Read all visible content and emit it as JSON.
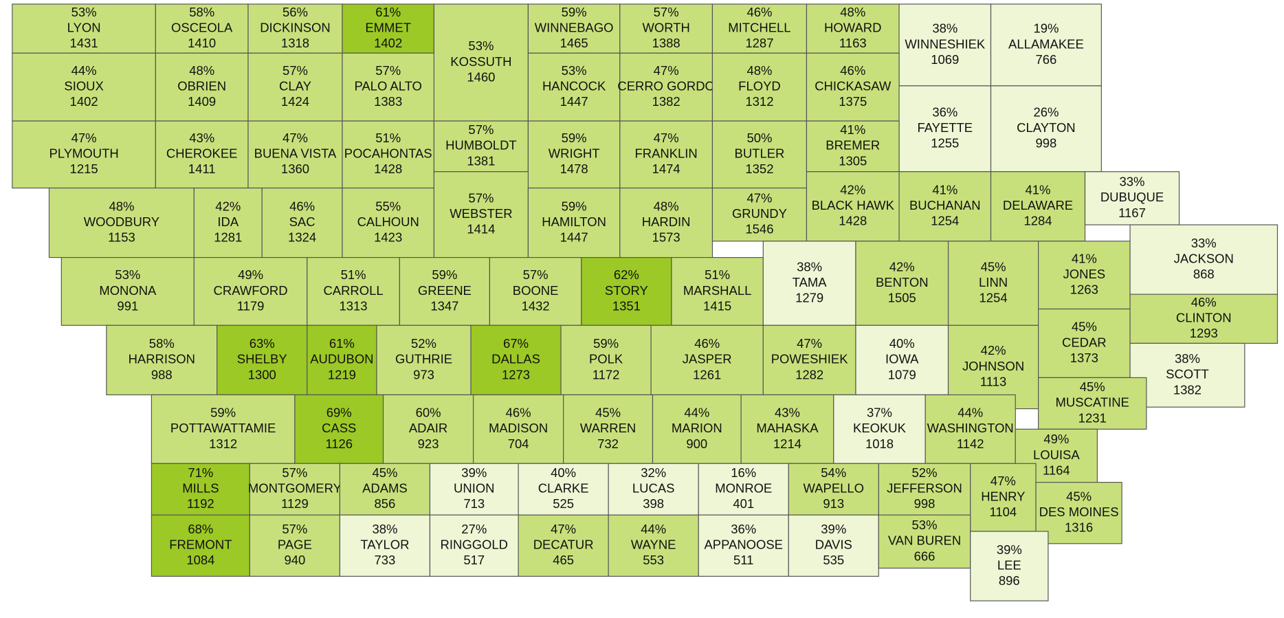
{
  "counties": [
    {
      "name": "LYON",
      "count": 1431,
      "pct": "53%",
      "color": "#c8e07c"
    },
    {
      "name": "OSCEOLA",
      "count": 1410,
      "pct": "58%",
      "color": "#c8e07c"
    },
    {
      "name": "DICKINSON",
      "count": 1318,
      "pct": "56%",
      "color": "#c8e07c"
    },
    {
      "name": "EMMET",
      "count": 1402,
      "pct": "61%",
      "color": "#9cc925"
    },
    {
      "name": "KOSSUTH",
      "count": 1460,
      "pct": "53%",
      "color": "#c8e07c"
    },
    {
      "name": "WINNEBAGO",
      "count": 1465,
      "pct": "59%",
      "color": "#c8e07c"
    },
    {
      "name": "WORTH",
      "count": 1388,
      "pct": "57%",
      "color": "#c8e07c"
    },
    {
      "name": "MITCHELL",
      "count": 1287,
      "pct": "46%",
      "color": "#c8e07c"
    },
    {
      "name": "HOWARD",
      "count": 1163,
      "pct": "48%",
      "color": "#c8e07c"
    },
    {
      "name": "WINNESHIEK",
      "count": 1069,
      "pct": "38%",
      "color": "#eef6d5"
    },
    {
      "name": "ALLAMAKEE",
      "count": 766,
      "pct": "19%",
      "color": "#eef6d5"
    },
    {
      "name": "SIOUX",
      "count": 1402,
      "pct": "44%",
      "color": "#c8e07c"
    },
    {
      "name": "OBRIEN",
      "count": 1409,
      "pct": "48%",
      "color": "#c8e07c"
    },
    {
      "name": "CLAY",
      "count": 1424,
      "pct": "57%",
      "color": "#c8e07c"
    },
    {
      "name": "PALO ALTO",
      "count": 1383,
      "pct": "57%",
      "color": "#c8e07c"
    },
    {
      "name": "HANCOCK",
      "count": 1447,
      "pct": "53%",
      "color": "#c8e07c"
    },
    {
      "name": "CERRO GORDO",
      "count": 1382,
      "pct": "47%",
      "color": "#c8e07c"
    },
    {
      "name": "FLOYD",
      "count": 1312,
      "pct": "48%",
      "color": "#c8e07c"
    },
    {
      "name": "CHICKASAW",
      "count": 1375,
      "pct": "46%",
      "color": "#c8e07c"
    },
    {
      "name": "FAYETTE",
      "count": 1255,
      "pct": "36%",
      "color": "#eef6d5"
    },
    {
      "name": "CLAYTON",
      "count": 998,
      "pct": "26%",
      "color": "#eef6d5"
    },
    {
      "name": "PLYMOUTH",
      "count": 1215,
      "pct": "47%",
      "color": "#c8e07c"
    },
    {
      "name": "CHEROKEE",
      "count": 1411,
      "pct": "43%",
      "color": "#c8e07c"
    },
    {
      "name": "BUENA VISTA",
      "count": 1360,
      "pct": "47%",
      "color": "#c8e07c"
    },
    {
      "name": "POCAHONTAS",
      "count": 1428,
      "pct": "51%",
      "color": "#c8e07c"
    },
    {
      "name": "HUMBOLDT",
      "count": 1381,
      "pct": "57%",
      "color": "#c8e07c"
    },
    {
      "name": "WRIGHT",
      "count": 1478,
      "pct": "59%",
      "color": "#c8e07c"
    },
    {
      "name": "FRANKLIN",
      "count": 1474,
      "pct": "47%",
      "color": "#c8e07c"
    },
    {
      "name": "BUTLER",
      "count": 1352,
      "pct": "50%",
      "color": "#c8e07c"
    },
    {
      "name": "BREMER",
      "count": 1305,
      "pct": "41%",
      "color": "#c8e07c"
    },
    {
      "name": "WOODBURY",
      "count": 1153,
      "pct": "48%",
      "color": "#c8e07c"
    },
    {
      "name": "IDA",
      "count": 1281,
      "pct": "42%",
      "color": "#c8e07c"
    },
    {
      "name": "SAC",
      "count": 1324,
      "pct": "46%",
      "color": "#c8e07c"
    },
    {
      "name": "CALHOUN",
      "count": 1423,
      "pct": "55%",
      "color": "#c8e07c"
    },
    {
      "name": "WEBSTER",
      "count": 1414,
      "pct": "57%",
      "color": "#c8e07c"
    },
    {
      "name": "HAMILTON",
      "count": 1447,
      "pct": "59%",
      "color": "#c8e07c"
    },
    {
      "name": "HARDIN",
      "count": 1573,
      "pct": "48%",
      "color": "#c8e07c"
    },
    {
      "name": "GRUNDY",
      "count": 1546,
      "pct": "47%",
      "color": "#c8e07c"
    },
    {
      "name": "BLACK HAWK",
      "count": 1428,
      "pct": "42%",
      "color": "#c8e07c"
    },
    {
      "name": "BUCHANAN",
      "count": 1254,
      "pct": "41%",
      "color": "#c8e07c"
    },
    {
      "name": "DELAWARE",
      "count": 1284,
      "pct": "41%",
      "color": "#c8e07c"
    },
    {
      "name": "DUBUQUE",
      "count": 1167,
      "pct": "33%",
      "color": "#eef6d5"
    },
    {
      "name": "MONONA",
      "count": 991,
      "pct": "53%",
      "color": "#c8e07c"
    },
    {
      "name": "CRAWFORD",
      "count": 1179,
      "pct": "49%",
      "color": "#c8e07c"
    },
    {
      "name": "CARROLL",
      "count": 1313,
      "pct": "51%",
      "color": "#c8e07c"
    },
    {
      "name": "GREENE",
      "count": 1347,
      "pct": "59%",
      "color": "#c8e07c"
    },
    {
      "name": "BOONE",
      "count": 1432,
      "pct": "57%",
      "color": "#c8e07c"
    },
    {
      "name": "STORY",
      "count": 1351,
      "pct": "62%",
      "color": "#9cc925"
    },
    {
      "name": "MARSHALL",
      "count": 1415,
      "pct": "51%",
      "color": "#c8e07c"
    },
    {
      "name": "TAMA",
      "count": 1279,
      "pct": "38%",
      "color": "#eef6d5"
    },
    {
      "name": "BENTON",
      "count": 1505,
      "pct": "42%",
      "color": "#c8e07c"
    },
    {
      "name": "LINN",
      "count": 1254,
      "pct": "45%",
      "color": "#c8e07c"
    },
    {
      "name": "JONES",
      "count": 1263,
      "pct": "41%",
      "color": "#c8e07c"
    },
    {
      "name": "JACKSON",
      "count": 868,
      "pct": "33%",
      "color": "#eef6d5"
    },
    {
      "name": "HARRISON",
      "count": 988,
      "pct": "58%",
      "color": "#c8e07c"
    },
    {
      "name": "SHELBY",
      "count": 1300,
      "pct": "63%",
      "color": "#9cc925"
    },
    {
      "name": "AUDUBON",
      "count": 1219,
      "pct": "61%",
      "color": "#9cc925"
    },
    {
      "name": "GUTHRIE",
      "count": 973,
      "pct": "52%",
      "color": "#c8e07c"
    },
    {
      "name": "DALLAS",
      "count": 1273,
      "pct": "67%",
      "color": "#9cc925"
    },
    {
      "name": "POLK",
      "count": 1172,
      "pct": "59%",
      "color": "#c8e07c"
    },
    {
      "name": "JASPER",
      "count": 1261,
      "pct": "46%",
      "color": "#c8e07c"
    },
    {
      "name": "POWESHIEK",
      "count": 1282,
      "pct": "47%",
      "color": "#c8e07c"
    },
    {
      "name": "IOWA",
      "count": 1079,
      "pct": "40%",
      "color": "#eef6d5"
    },
    {
      "name": "JOHNSON",
      "count": 1113,
      "pct": "42%",
      "color": "#c8e07c"
    },
    {
      "name": "CEDAR",
      "count": 1373,
      "pct": "45%",
      "color": "#c8e07c"
    },
    {
      "name": "CLINTON",
      "count": 1293,
      "pct": "46%",
      "color": "#c8e07c"
    },
    {
      "name": "SCOTT",
      "count": 1382,
      "pct": "38%",
      "color": "#eef6d5"
    },
    {
      "name": "MUSCATINE",
      "count": 1231,
      "pct": "45%",
      "color": "#c8e07c"
    },
    {
      "name": "POTTAWATTAMIE",
      "count": 1312,
      "pct": "59%",
      "color": "#c8e07c"
    },
    {
      "name": "CASS",
      "count": 1126,
      "pct": "69%",
      "color": "#9cc925"
    },
    {
      "name": "ADAIR",
      "count": 923,
      "pct": "60%",
      "color": "#c8e07c"
    },
    {
      "name": "MADISON",
      "count": 704,
      "pct": "46%",
      "color": "#c8e07c"
    },
    {
      "name": "WARREN",
      "count": 732,
      "pct": "45%",
      "color": "#c8e07c"
    },
    {
      "name": "MARION",
      "count": 900,
      "pct": "44%",
      "color": "#c8e07c"
    },
    {
      "name": "MAHASKA",
      "count": 1214,
      "pct": "43%",
      "color": "#c8e07c"
    },
    {
      "name": "KEOKUK",
      "count": 1018,
      "pct": "37%",
      "color": "#eef6d5"
    },
    {
      "name": "WASHINGTON",
      "count": 1142,
      "pct": "44%",
      "color": "#c8e07c"
    },
    {
      "name": "LOUISA",
      "count": 1164,
      "pct": "49%",
      "color": "#c8e07c"
    },
    {
      "name": "MILLS",
      "count": 1192,
      "pct": "71%",
      "color": "#9cc925"
    },
    {
      "name": "MONTGOMERY",
      "count": 1129,
      "pct": "57%",
      "color": "#c8e07c"
    },
    {
      "name": "ADAMS",
      "count": 856,
      "pct": "45%",
      "color": "#c8e07c"
    },
    {
      "name": "UNION",
      "count": 713,
      "pct": "39%",
      "color": "#eef6d5"
    },
    {
      "name": "CLARKE",
      "count": 525,
      "pct": "40%",
      "color": "#eef6d5"
    },
    {
      "name": "LUCAS",
      "count": 398,
      "pct": "32%",
      "color": "#eef6d5"
    },
    {
      "name": "MONROE",
      "count": 401,
      "pct": "16%",
      "color": "#eef6d5"
    },
    {
      "name": "WAPELLO",
      "count": 913,
      "pct": "54%",
      "color": "#c8e07c"
    },
    {
      "name": "JEFFERSON",
      "count": 998,
      "pct": "52%",
      "color": "#c8e07c"
    },
    {
      "name": "HENRY",
      "count": 1104,
      "pct": "47%",
      "color": "#c8e07c"
    },
    {
      "name": "DES MOINES",
      "count": 1316,
      "pct": "45%",
      "color": "#c8e07c"
    },
    {
      "name": "FREMONT",
      "count": 1084,
      "pct": "68%",
      "color": "#9cc925"
    },
    {
      "name": "PAGE",
      "count": 940,
      "pct": "57%",
      "color": "#c8e07c"
    },
    {
      "name": "TAYLOR",
      "count": 733,
      "pct": "38%",
      "color": "#eef6d5"
    },
    {
      "name": "RINGGOLD",
      "count": 517,
      "pct": "27%",
      "color": "#eef6d5"
    },
    {
      "name": "DECATUR",
      "count": 465,
      "pct": "47%",
      "color": "#c8e07c"
    },
    {
      "name": "WAYNE",
      "count": 553,
      "pct": "44%",
      "color": "#c8e07c"
    },
    {
      "name": "APPANOOSE",
      "count": 511,
      "pct": "36%",
      "color": "#eef6d5"
    },
    {
      "name": "DAVIS",
      "count": 535,
      "pct": "39%",
      "color": "#eef6d5"
    },
    {
      "name": "VAN BUREN",
      "count": 666,
      "pct": "53%",
      "color": "#c8e07c"
    },
    {
      "name": "LEE",
      "count": 896,
      "pct": "39%",
      "color": "#eef6d5"
    }
  ]
}
